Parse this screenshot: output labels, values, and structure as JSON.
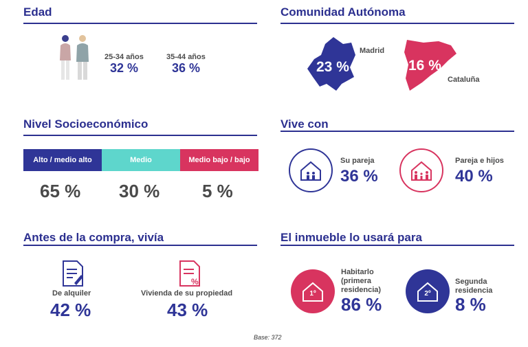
{
  "edad": {
    "title": "Edad",
    "groups": [
      {
        "label": "25-34 años",
        "value": "32 %"
      },
      {
        "label": "35-44 años",
        "value": "36 %"
      }
    ]
  },
  "comunidad": {
    "title": "Comunidad Autónoma",
    "madrid": {
      "label": "Madrid",
      "value": "23 %",
      "color": "#2f3597"
    },
    "cataluna": {
      "label": "Cataluña",
      "value": "16 %",
      "color": "#d8345f"
    }
  },
  "nivel": {
    "title": "Nivel Socioeconómico",
    "segments": [
      {
        "label": "Alto / medio alto",
        "value": "65 %",
        "color": "#2f3597"
      },
      {
        "label": "Medio",
        "value": "30 %",
        "color": "#5ed6cc"
      },
      {
        "label": "Medio bajo / bajo",
        "value": "5 %",
        "color": "#d8345f"
      }
    ]
  },
  "vive": {
    "title": "Vive con",
    "items": [
      {
        "label": "Su pareja",
        "value": "36 %"
      },
      {
        "label": "Pareja e hijos",
        "value": "40 %"
      }
    ]
  },
  "antes": {
    "title": "Antes de la compra, vivía",
    "items": [
      {
        "label": "De alquiler",
        "value": "42 %"
      },
      {
        "label": "Vivienda de su propiedad",
        "value": "43 %"
      }
    ]
  },
  "inmueble": {
    "title": "El inmueble lo usará para",
    "items": [
      {
        "label_lines": [
          "Habitarlo",
          "(primera",
          "residencia)"
        ],
        "badge": "1º",
        "value": "86 %"
      },
      {
        "label_lines": [
          "Segunda",
          "residencia"
        ],
        "badge": "2º",
        "value": "8 %"
      }
    ]
  },
  "base": "Base: 372"
}
